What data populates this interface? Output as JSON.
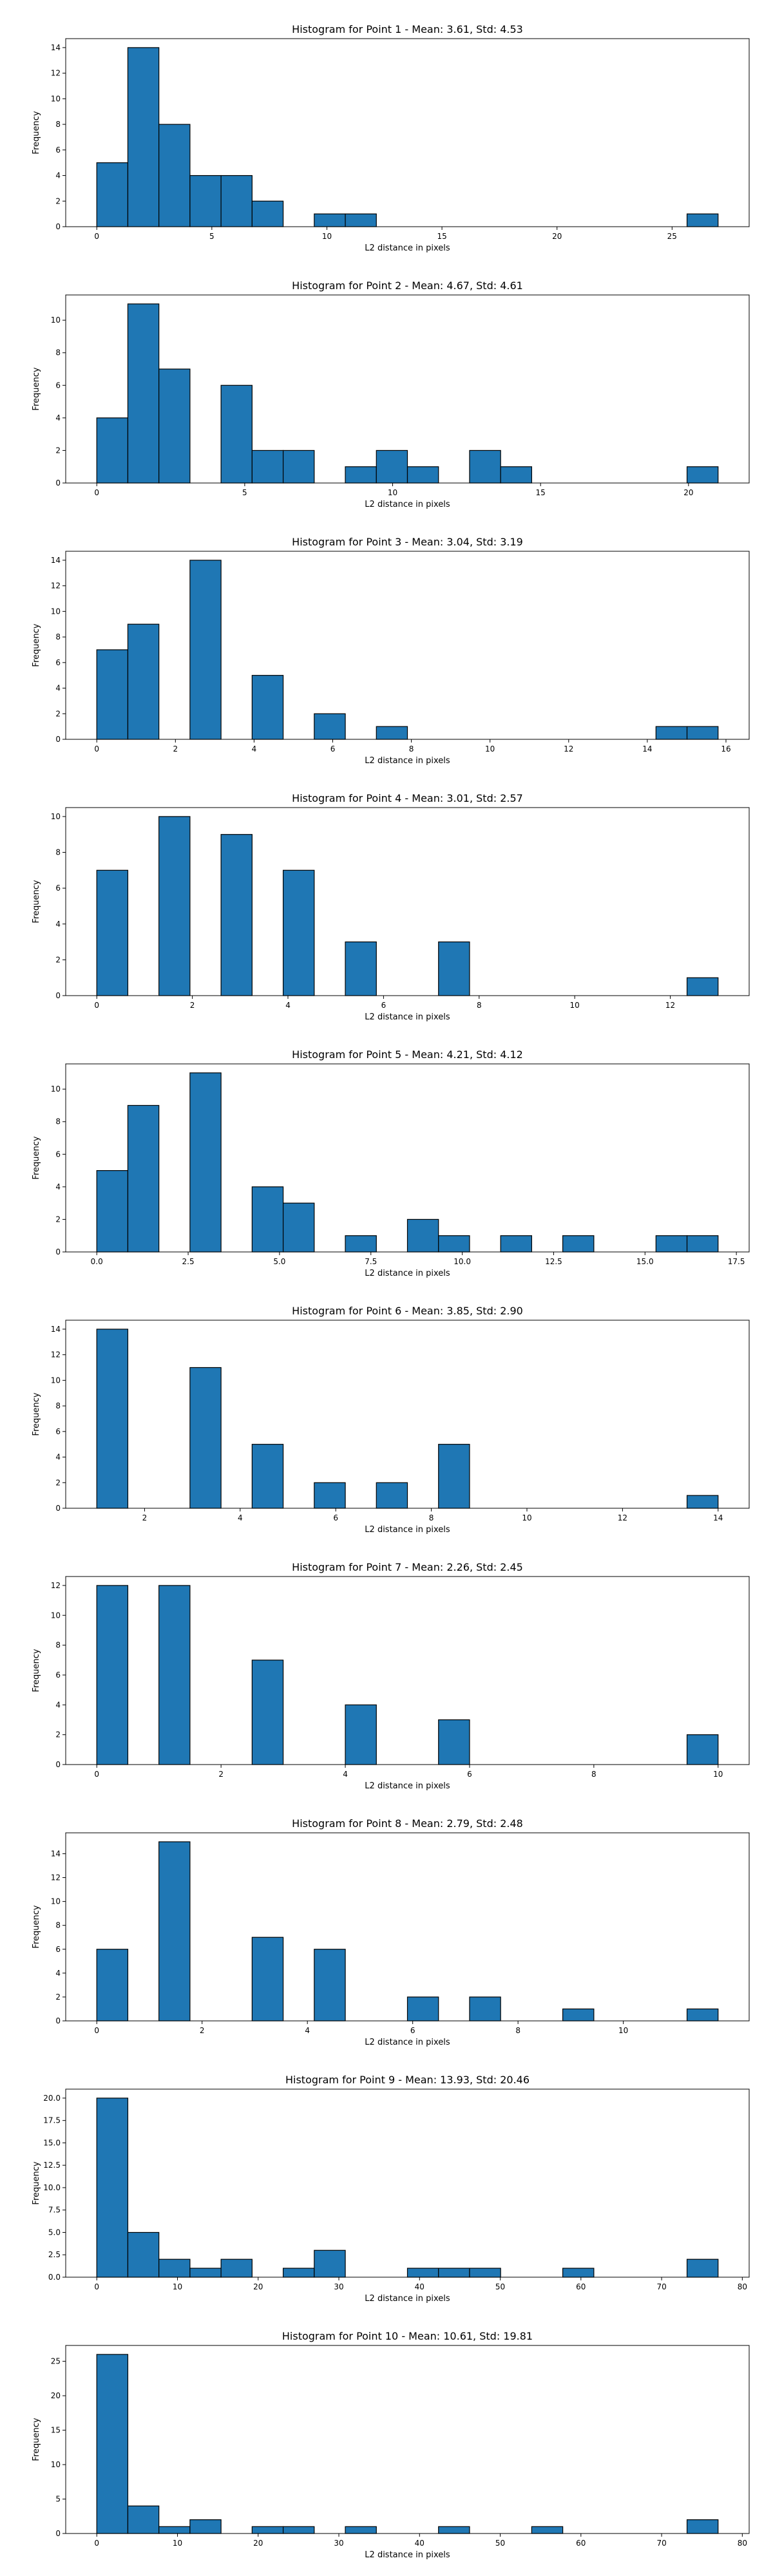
{
  "chart_data": [
    {
      "type": "bar",
      "title": "Histogram for Point 1 - Mean: 3.61, Std: 4.53",
      "xlabel": "L2 distance in pixels",
      "ylabel": "Frequency",
      "bins": [
        0,
        1.35,
        2.7,
        4.05,
        5.4,
        6.75,
        8.1,
        9.45,
        10.8,
        12.15,
        13.5,
        14.85,
        16.2,
        17.55,
        18.9,
        20.25,
        21.6,
        22.95,
        24.3,
        25.65,
        27.0
      ],
      "counts": [
        5,
        14,
        8,
        4,
        4,
        2,
        0,
        1,
        1,
        0,
        0,
        0,
        0,
        0,
        0,
        0,
        0,
        0,
        0,
        1
      ],
      "xlim": [
        -1.35,
        28.35
      ],
      "ylim": [
        0,
        14.7
      ],
      "xticks": [
        0,
        5,
        10,
        15,
        20,
        25
      ],
      "xtick_labels": [
        "0",
        "5",
        "10",
        "15",
        "20",
        "25"
      ],
      "yticks": [
        0,
        2,
        4,
        6,
        8,
        10,
        12,
        14
      ],
      "ytick_labels": [
        "0",
        "2",
        "4",
        "6",
        "8",
        "10",
        "12",
        "14"
      ],
      "bar_color": "#1f77b4",
      "edge_color": "#000000"
    },
    {
      "type": "bar",
      "title": "Histogram for Point 2 - Mean: 4.67, Std: 4.61",
      "xlabel": "L2 distance in pixels",
      "ylabel": "Frequency",
      "bins": [
        0,
        1.05,
        2.1,
        3.15,
        4.2,
        5.25,
        6.3,
        7.35,
        8.4,
        9.45,
        10.5,
        11.55,
        12.6,
        13.65,
        14.7,
        15.75,
        16.8,
        17.85,
        18.9,
        19.95,
        21.0
      ],
      "counts": [
        4,
        11,
        7,
        0,
        6,
        2,
        2,
        0,
        1,
        2,
        1,
        0,
        2,
        1,
        0,
        0,
        0,
        0,
        0,
        1
      ],
      "xlim": [
        -1.05,
        22.05
      ],
      "ylim": [
        0,
        11.55
      ],
      "xticks": [
        0,
        5,
        10,
        15,
        20
      ],
      "xtick_labels": [
        "0",
        "5",
        "10",
        "15",
        "20"
      ],
      "yticks": [
        0,
        2,
        4,
        6,
        8,
        10
      ],
      "ytick_labels": [
        "0",
        "2",
        "4",
        "6",
        "8",
        "10"
      ],
      "bar_color": "#1f77b4",
      "edge_color": "#000000"
    },
    {
      "type": "bar",
      "title": "Histogram for Point 3 - Mean: 3.04, Std: 3.19",
      "xlabel": "L2 distance in pixels",
      "ylabel": "Frequency",
      "bins": [
        0,
        0.79,
        1.58,
        2.37,
        3.16,
        3.95,
        4.74,
        5.53,
        6.32,
        7.11,
        7.9,
        8.69,
        9.48,
        10.27,
        11.06,
        11.85,
        12.64,
        13.43,
        14.22,
        15.01,
        15.8
      ],
      "counts": [
        7,
        9,
        0,
        14,
        0,
        5,
        0,
        2,
        0,
        1,
        0,
        0,
        0,
        0,
        0,
        0,
        0,
        0,
        1,
        1
      ],
      "xlim": [
        -0.79,
        16.59
      ],
      "ylim": [
        0,
        14.7
      ],
      "xticks": [
        0,
        2,
        4,
        6,
        8,
        10,
        12,
        14,
        16
      ],
      "xtick_labels": [
        "0",
        "2",
        "4",
        "6",
        "8",
        "10",
        "12",
        "14",
        "16"
      ],
      "yticks": [
        0,
        2,
        4,
        6,
        8,
        10,
        12,
        14
      ],
      "ytick_labels": [
        "0",
        "2",
        "4",
        "6",
        "8",
        "10",
        "12",
        "14"
      ],
      "bar_color": "#1f77b4",
      "edge_color": "#000000"
    },
    {
      "type": "bar",
      "title": "Histogram for Point 4 - Mean: 3.01, Std: 2.57",
      "xlabel": "L2 distance in pixels",
      "ylabel": "Frequency",
      "bins": [
        0,
        0.65,
        1.3,
        1.95,
        2.6,
        3.25,
        3.9,
        4.55,
        5.2,
        5.85,
        6.5,
        7.15,
        7.8,
        8.45,
        9.1,
        9.75,
        10.4,
        11.05,
        11.7,
        12.35,
        13.0
      ],
      "counts": [
        7,
        0,
        10,
        0,
        9,
        0,
        7,
        0,
        3,
        0,
        0,
        3,
        0,
        0,
        0,
        0,
        0,
        0,
        0,
        1
      ],
      "xlim": [
        -0.65,
        13.65
      ],
      "ylim": [
        0,
        10.5
      ],
      "xticks": [
        0,
        2,
        4,
        6,
        8,
        10,
        12
      ],
      "xtick_labels": [
        "0",
        "2",
        "4",
        "6",
        "8",
        "10",
        "12"
      ],
      "yticks": [
        0,
        2,
        4,
        6,
        8,
        10
      ],
      "ytick_labels": [
        "0",
        "2",
        "4",
        "6",
        "8",
        "10"
      ],
      "bar_color": "#1f77b4",
      "edge_color": "#000000"
    },
    {
      "type": "bar",
      "title": "Histogram for Point 5 - Mean: 4.21, Std: 4.12",
      "xlabel": "L2 distance in pixels",
      "ylabel": "Frequency",
      "bins": [
        0,
        0.85,
        1.7,
        2.55,
        3.4,
        4.25,
        5.1,
        5.95,
        6.8,
        7.65,
        8.5,
        9.35,
        10.2,
        11.05,
        11.9,
        12.75,
        13.6,
        14.45,
        15.3,
        16.15,
        17.0
      ],
      "counts": [
        5,
        9,
        0,
        11,
        0,
        4,
        3,
        0,
        1,
        0,
        2,
        1,
        0,
        1,
        0,
        1,
        0,
        0,
        1,
        1
      ],
      "xlim": [
        -0.85,
        17.85
      ],
      "ylim": [
        0,
        11.55
      ],
      "xticks": [
        0,
        2.5,
        5,
        7.5,
        10,
        12.5,
        15,
        17.5
      ],
      "xtick_labels": [
        "0.0",
        "2.5",
        "5.0",
        "7.5",
        "10.0",
        "12.5",
        "15.0",
        "17.5"
      ],
      "yticks": [
        0,
        2,
        4,
        6,
        8,
        10
      ],
      "ytick_labels": [
        "0",
        "2",
        "4",
        "6",
        "8",
        "10"
      ],
      "bar_color": "#1f77b4",
      "edge_color": "#000000"
    },
    {
      "type": "bar",
      "title": "Histogram for Point 6 - Mean: 3.85, Std: 2.90",
      "xlabel": "L2 distance in pixels",
      "ylabel": "Frequency",
      "bins": [
        1.0,
        1.65,
        2.3,
        2.95,
        3.6,
        4.25,
        4.9,
        5.55,
        6.2,
        6.85,
        7.5,
        8.15,
        8.8,
        9.45,
        10.1,
        10.75,
        11.4,
        12.05,
        12.7,
        13.35,
        14.0
      ],
      "counts": [
        14,
        0,
        0,
        11,
        0,
        5,
        0,
        2,
        0,
        2,
        0,
        5,
        0,
        0,
        0,
        0,
        0,
        0,
        0,
        1
      ],
      "xlim": [
        0.35,
        14.65
      ],
      "ylim": [
        0,
        14.7
      ],
      "xticks": [
        2,
        4,
        6,
        8,
        10,
        12,
        14
      ],
      "xtick_labels": [
        "2",
        "4",
        "6",
        "8",
        "10",
        "12",
        "14"
      ],
      "yticks": [
        0,
        2,
        4,
        6,
        8,
        10,
        12,
        14
      ],
      "ytick_labels": [
        "0",
        "2",
        "4",
        "6",
        "8",
        "10",
        "12",
        "14"
      ],
      "bar_color": "#1f77b4",
      "edge_color": "#000000"
    },
    {
      "type": "bar",
      "title": "Histogram for Point 7 - Mean: 2.26, Std: 2.45",
      "xlabel": "L2 distance in pixels",
      "ylabel": "Frequency",
      "bins": [
        0,
        0.5,
        1.0,
        1.5,
        2.0,
        2.5,
        3.0,
        3.5,
        4.0,
        4.5,
        5.0,
        5.5,
        6.0,
        6.5,
        7.0,
        7.5,
        8.0,
        8.5,
        9.0,
        9.5,
        10.0
      ],
      "counts": [
        12,
        0,
        12,
        0,
        0,
        7,
        0,
        0,
        4,
        0,
        0,
        3,
        0,
        0,
        0,
        0,
        0,
        0,
        0,
        2
      ],
      "xlim": [
        -0.5,
        10.5
      ],
      "ylim": [
        0,
        12.6
      ],
      "xticks": [
        0,
        2,
        4,
        6,
        8,
        10
      ],
      "xtick_labels": [
        "0",
        "2",
        "4",
        "6",
        "8",
        "10"
      ],
      "yticks": [
        0,
        2,
        4,
        6,
        8,
        10,
        12
      ],
      "ytick_labels": [
        "0",
        "2",
        "4",
        "6",
        "8",
        "10",
        "12"
      ],
      "bar_color": "#1f77b4",
      "edge_color": "#000000"
    },
    {
      "type": "bar",
      "title": "Histogram for Point 8 - Mean: 2.79, Std: 2.48",
      "xlabel": "L2 distance in pixels",
      "ylabel": "Frequency",
      "bins": [
        0,
        0.59,
        1.18,
        1.77,
        2.36,
        2.95,
        3.54,
        4.13,
        4.72,
        5.31,
        5.9,
        6.49,
        7.08,
        7.67,
        8.26,
        8.85,
        9.44,
        10.03,
        10.62,
        11.21,
        11.8
      ],
      "counts": [
        6,
        0,
        15,
        0,
        0,
        7,
        0,
        6,
        0,
        0,
        2,
        0,
        2,
        0,
        0,
        1,
        0,
        0,
        0,
        1
      ],
      "xlim": [
        -0.59,
        12.39
      ],
      "ylim": [
        0,
        15.75
      ],
      "xticks": [
        0,
        2,
        4,
        6,
        8,
        10
      ],
      "xtick_labels": [
        "0",
        "2",
        "4",
        "6",
        "8",
        "10"
      ],
      "yticks": [
        0,
        2,
        4,
        6,
        8,
        10,
        12,
        14
      ],
      "ytick_labels": [
        "0",
        "2",
        "4",
        "6",
        "8",
        "10",
        "12",
        "14"
      ],
      "bar_color": "#1f77b4",
      "edge_color": "#000000"
    },
    {
      "type": "bar",
      "title": "Histogram for Point 9 - Mean: 13.93, Std: 20.46",
      "xlabel": "L2 distance in pixels",
      "ylabel": "Frequency",
      "bins": [
        0,
        3.85,
        7.7,
        11.55,
        15.4,
        19.25,
        23.1,
        26.95,
        30.8,
        34.65,
        38.5,
        42.35,
        46.2,
        50.05,
        53.9,
        57.75,
        61.6,
        65.45,
        69.3,
        73.15,
        77.0
      ],
      "counts": [
        20,
        5,
        2,
        1,
        2,
        0,
        1,
        3,
        0,
        0,
        1,
        1,
        1,
        0,
        0,
        1,
        0,
        0,
        0,
        2
      ],
      "xlim": [
        -3.85,
        80.85
      ],
      "ylim": [
        0,
        21.0
      ],
      "xticks": [
        0,
        10,
        20,
        30,
        40,
        50,
        60,
        70,
        80
      ],
      "xtick_labels": [
        "0",
        "10",
        "20",
        "30",
        "40",
        "50",
        "60",
        "70",
        "80"
      ],
      "yticks": [
        0,
        2.5,
        5,
        7.5,
        10,
        12.5,
        15,
        17.5,
        20
      ],
      "ytick_labels": [
        "0.0",
        "2.5",
        "5.0",
        "7.5",
        "10.0",
        "12.5",
        "15.0",
        "17.5",
        "20.0"
      ],
      "bar_color": "#1f77b4",
      "edge_color": "#000000"
    },
    {
      "type": "bar",
      "title": "Histogram for Point 10 - Mean: 10.61, Std: 19.81",
      "xlabel": "L2 distance in pixels",
      "ylabel": "Frequency",
      "bins": [
        0,
        3.85,
        7.7,
        11.55,
        15.4,
        19.25,
        23.1,
        26.95,
        30.8,
        34.65,
        38.5,
        42.35,
        46.2,
        50.05,
        53.9,
        57.75,
        61.6,
        65.45,
        69.3,
        73.15,
        77.0
      ],
      "counts": [
        26,
        4,
        1,
        2,
        0,
        1,
        1,
        0,
        1,
        0,
        0,
        1,
        0,
        0,
        1,
        0,
        0,
        0,
        0,
        2
      ],
      "xlim": [
        -3.85,
        80.85
      ],
      "ylim": [
        0,
        27.3
      ],
      "xticks": [
        0,
        10,
        20,
        30,
        40,
        50,
        60,
        70,
        80
      ],
      "xtick_labels": [
        "0",
        "10",
        "20",
        "30",
        "40",
        "50",
        "60",
        "70",
        "80"
      ],
      "yticks": [
        0,
        5,
        10,
        15,
        20,
        25
      ],
      "ytick_labels": [
        "0",
        "5",
        "10",
        "15",
        "20",
        "25"
      ],
      "bar_color": "#1f77b4",
      "edge_color": "#000000"
    }
  ]
}
